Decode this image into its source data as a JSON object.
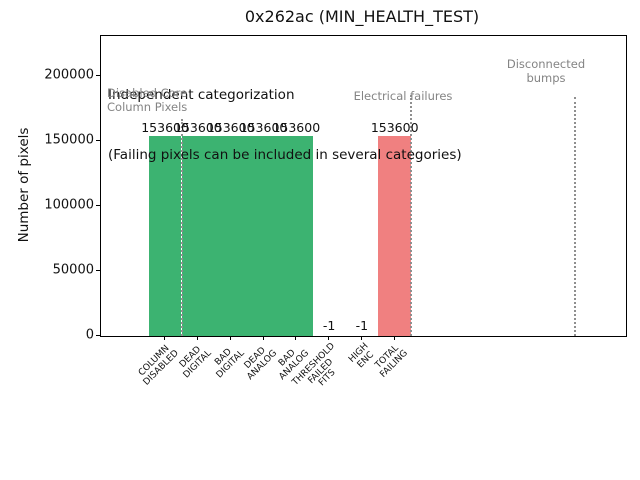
{
  "chart_data": {
    "type": "bar",
    "title": "0x262ac (MIN_HEALTH_TEST)",
    "ylabel": "Number of pixels",
    "categories": [
      "COLUMN\nDISABLED",
      "DEAD\nDIGITAL",
      "BAD\nDIGITAL",
      "DEAD\nANALOG",
      "BAD\nANALOG",
      "THRESHOLD\nFAILED\nFITS",
      "HIGH\nENC",
      "TOTAL\nFAILING"
    ],
    "values": [
      153600,
      153600,
      153600,
      153600,
      153600,
      -1,
      -1,
      153600
    ],
    "bar_labels": [
      "153600",
      "153600",
      "153600",
      "153600",
      "153600",
      "-1",
      "-1",
      "153600"
    ],
    "bar_colors": [
      "#3cb371",
      "#3cb371",
      "#3cb371",
      "#3cb371",
      "#3cb371",
      null,
      null,
      "#f08080"
    ],
    "yticks": [
      0,
      50000,
      100000,
      150000,
      200000
    ],
    "ytick_labels": [
      "0",
      "50000",
      "100000",
      "150000",
      "200000"
    ],
    "ylim": [
      0,
      230400
    ],
    "grid": false,
    "legend_position": "none",
    "separator_lines_units": [
      0.5,
      7.5,
      12.5
    ],
    "annotations": {
      "header_line1": "Independent categorization",
      "header_line2": "(Failing pixels can be included in several categories)",
      "section_disabled_core": "Disabled Core\nColumn Pixels",
      "section_electrical": "Electrical failures",
      "section_disconnected": "Disconnected\nbumps"
    },
    "colors": {
      "passing_bar_green": "#3cb371",
      "failing_bar_red": "#f08080",
      "section_text_gray": "#848484",
      "separator_gray": "#8f8f8f"
    }
  }
}
